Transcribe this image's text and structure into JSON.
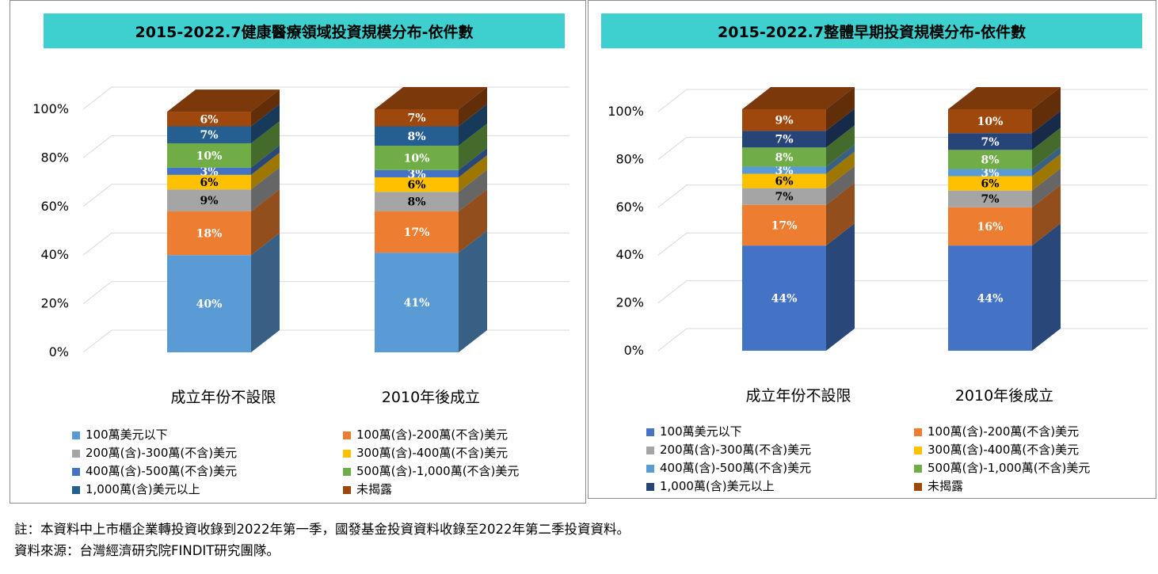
{
  "charts": {
    "left": {
      "title": "2015-2022.7健康醫療領域投資規模分布-依件數"
    },
    "right": {
      "title": "2015-2022.7整體早期投資規模分布-依件數"
    }
  },
  "chart_data": [
    {
      "type": "bar",
      "stacked": true,
      "three_d": true,
      "title": "2015-2022.7健康醫療領域投資規模分布-依件數",
      "categories": [
        "成立年份不設限",
        "2010年後成立"
      ],
      "y_ticks": [
        "0%",
        "20%",
        "40%",
        "60%",
        "80%",
        "100%"
      ],
      "ylim": [
        0,
        100
      ],
      "grid": true,
      "legend_position": "bottom",
      "series": [
        {
          "name": "100萬美元以下",
          "values": [
            40,
            41
          ],
          "labels": [
            "40%",
            "41%"
          ],
          "color": "#5b9bd5"
        },
        {
          "name": "100萬(含)-200萬(不含)美元",
          "values": [
            18,
            17
          ],
          "labels": [
            "18%",
            "17%"
          ],
          "color": "#ed7d31"
        },
        {
          "name": "200萬(含)-300萬(不含)美元",
          "values": [
            9,
            8
          ],
          "labels": [
            "9%",
            "8%"
          ],
          "color": "#a5a5a5"
        },
        {
          "name": "300萬(含)-400萬(不含)美元",
          "values": [
            6,
            6
          ],
          "labels": [
            "6%",
            "6%"
          ],
          "color": "#ffc000"
        },
        {
          "name": "400萬(含)-500萬(不含)美元",
          "values": [
            3,
            3
          ],
          "labels": [
            "3%",
            "3%"
          ],
          "color": "#4472c4"
        },
        {
          "name": "500萬(含)-1,000萬(不含)美元",
          "values": [
            10,
            10
          ],
          "labels": [
            "10%",
            "10%"
          ],
          "color": "#70ad47"
        },
        {
          "name": "1,000萬(含)美元以上",
          "values": [
            7,
            8
          ],
          "labels": [
            "7%",
            "8%"
          ],
          "color": "#255e91"
        },
        {
          "name": "未揭露",
          "values": [
            6,
            7
          ],
          "labels": [
            "6%",
            "7%"
          ],
          "color": "#9e480e"
        }
      ]
    },
    {
      "type": "bar",
      "stacked": true,
      "three_d": true,
      "title": "2015-2022.7整體早期投資規模分布-依件數",
      "categories": [
        "成立年份不設限",
        "2010年後成立"
      ],
      "y_ticks": [
        "0%",
        "20%",
        "40%",
        "60%",
        "80%",
        "100%"
      ],
      "ylim": [
        0,
        100
      ],
      "grid": true,
      "legend_position": "bottom",
      "series": [
        {
          "name": "100萬美元以下",
          "values": [
            44,
            44
          ],
          "labels": [
            "44%",
            "44%"
          ],
          "color": "#4472c4"
        },
        {
          "name": "100萬(含)-200萬(不含)美元",
          "values": [
            17,
            16
          ],
          "labels": [
            "17%",
            "16%"
          ],
          "color": "#ed7d31"
        },
        {
          "name": "200萬(含)-300萬(不含)美元",
          "values": [
            7,
            7
          ],
          "labels": [
            "7%",
            "7%"
          ],
          "color": "#a5a5a5"
        },
        {
          "name": "300萬(含)-400萬(不含)美元",
          "values": [
            6,
            6
          ],
          "labels": [
            "6%",
            "6%"
          ],
          "color": "#ffc000"
        },
        {
          "name": "400萬(含)-500萬(不含)美元",
          "values": [
            3,
            3
          ],
          "labels": [
            "3%",
            "3%"
          ],
          "color": "#5b9bd5"
        },
        {
          "name": "500萬(含)-1,000萬(不含)美元",
          "values": [
            8,
            8
          ],
          "labels": [
            "8%",
            "8%"
          ],
          "color": "#70ad47"
        },
        {
          "name": "1,000萬(含)美元以上",
          "values": [
            7,
            7
          ],
          "labels": [
            "7%",
            "7%"
          ],
          "color": "#264478"
        },
        {
          "name": "未揭露",
          "values": [
            9,
            10
          ],
          "labels": [
            "9%",
            "10%"
          ],
          "color": "#9e480e"
        }
      ]
    }
  ],
  "footnotes": {
    "note": "註：本資料中上市櫃企業轉投資收錄到2022年第一季，國發基金投資資料收錄至2022年第二季投資資料。",
    "source": "資料來源：台灣經濟研究院FINDIT研究團隊。"
  }
}
